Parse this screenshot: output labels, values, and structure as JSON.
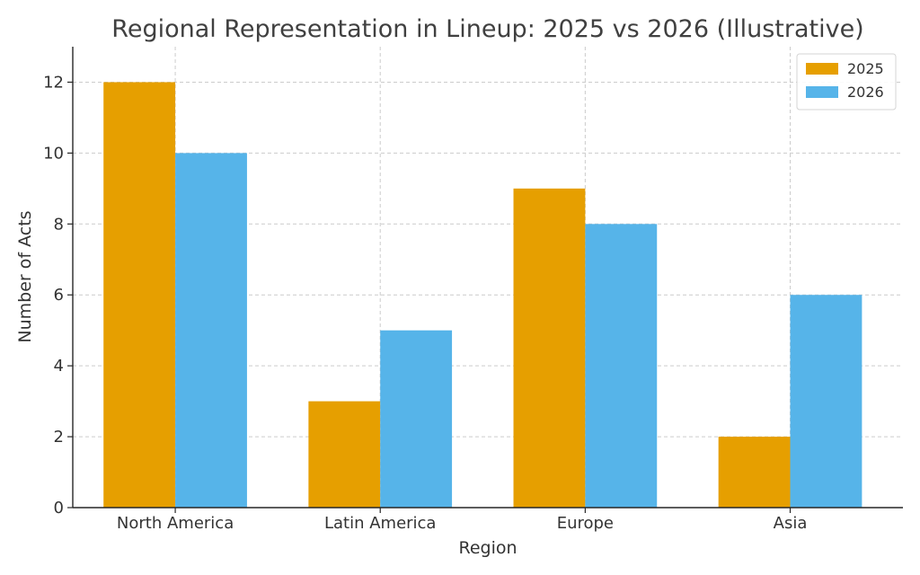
{
  "chart_data": {
    "type": "bar",
    "title": "Regional Representation in Lineup: 2025 vs 2026 (Illustrative)",
    "xlabel": "Region",
    "ylabel": "Number of Acts",
    "categories": [
      "North America",
      "Latin America",
      "Europe",
      "Asia"
    ],
    "series": [
      {
        "name": "2025",
        "values": [
          12,
          3,
          9,
          2
        ],
        "color": "#E69F00"
      },
      {
        "name": "2026",
        "values": [
          10,
          5,
          8,
          6
        ],
        "color": "#56B4E9"
      }
    ],
    "ylim": [
      0,
      13
    ],
    "yticks": [
      0,
      2,
      4,
      6,
      8,
      10,
      12
    ],
    "grid": true,
    "legend_position": "top-right"
  }
}
